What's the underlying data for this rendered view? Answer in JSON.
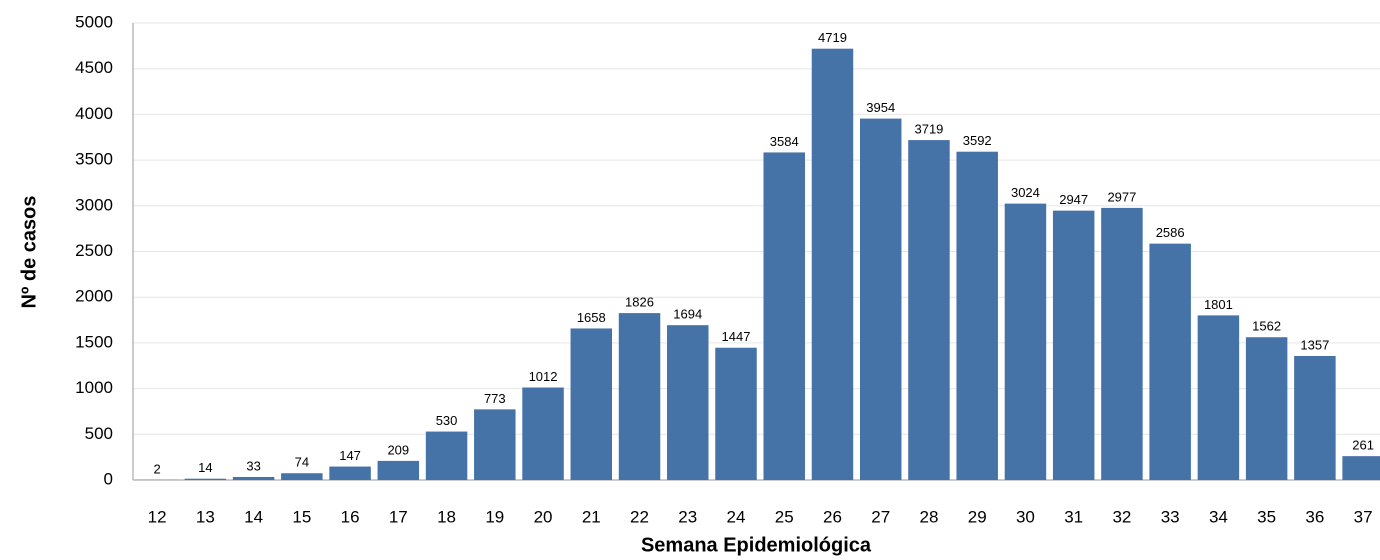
{
  "chart_data": {
    "type": "bar",
    "x_label": "Semana Epidemiológica",
    "y_label": "Nº de casos",
    "categories": [
      "12",
      "13",
      "14",
      "15",
      "16",
      "17",
      "18",
      "19",
      "20",
      "21",
      "22",
      "23",
      "24",
      "25",
      "26",
      "27",
      "28",
      "29",
      "30",
      "31",
      "32",
      "33",
      "34",
      "35",
      "36",
      "37"
    ],
    "values": [
      2,
      14,
      33,
      74,
      147,
      209,
      530,
      773,
      1012,
      1658,
      1826,
      1694,
      1447,
      3584,
      4719,
      3954,
      3719,
      3592,
      3024,
      2947,
      2977,
      2586,
      1801,
      1562,
      1357,
      261
    ],
    "color": "#4572a7",
    "ylim": [
      0,
      5000
    ],
    "yticks": [
      0,
      500,
      1000,
      1500,
      2000,
      2500,
      3000,
      3500,
      4000,
      4500,
      5000
    ],
    "grid": true
  }
}
